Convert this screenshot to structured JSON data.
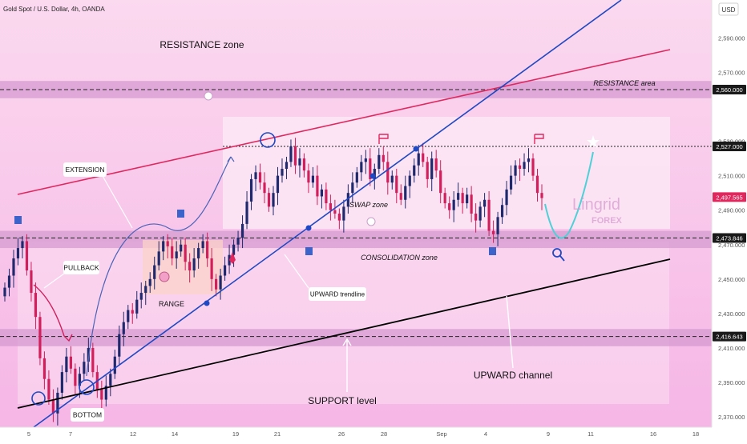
{
  "header": {
    "symbol": "Gold Spot / U.S. Dollar, 4h, OANDA"
  },
  "currency": "USD",
  "colors": {
    "background": "#fde4f4",
    "zone_fill": "#d59ad0",
    "zone_strong": "#c98ac6",
    "up_candle": "#1f2a6e",
    "down_candle": "#d21f5c",
    "resistance_line": "#e0275e",
    "trendline": "#1f48c4",
    "channel_line": "#000000",
    "price_tag_dark": "#1a1a1a",
    "price_tag_current": "#e0275e",
    "watermark": "#d79bd1"
  },
  "chart_data": {
    "type": "candlestick",
    "timeframe": "4h",
    "ylim": [
      2364,
      2612
    ],
    "x_ticks": [
      "5",
      "7",
      "12",
      "14",
      "19",
      "21",
      "26",
      "28",
      "Sep",
      "4",
      "9",
      "11",
      "16",
      "18"
    ],
    "y_ticks": [
      "2,590.000",
      "2,570.000",
      "2,530.000",
      "2,510.000",
      "2,490.000",
      "2,470.000",
      "2,450.000",
      "2,430.000",
      "2,410.000",
      "2,390.000",
      "2,370.000"
    ],
    "price_labels": [
      {
        "value": "2,560.000",
        "style": "dark"
      },
      {
        "value": "2,527.000",
        "style": "dark"
      },
      {
        "value": "2,497.565",
        "style": "current"
      },
      {
        "value": "2,473.846",
        "style": "dark"
      },
      {
        "value": "2,416.643",
        "style": "dark"
      }
    ],
    "zones": [
      {
        "name": "resistance-area",
        "from": 2555,
        "to": 2565
      },
      {
        "name": "consolidation-band",
        "from": 2468,
        "to": 2478
      },
      {
        "name": "support-band",
        "from": 2411,
        "to": 2421
      }
    ],
    "annotations": {
      "resistance_zone": "RESISTANCE zone",
      "resistance_area": "RESISTANCE area",
      "swap_zone": "SWAP zone",
      "consolidation_zone": "CONSOLIDATION zone",
      "range": "RANGE",
      "support_level": "SUPPORT level",
      "upward_channel": "UPWARD channel",
      "extension": "EXTENSION",
      "pullback": "PULLBACK",
      "upward_trendline": "UPWARD trendline",
      "bottom": "BOTTOM"
    },
    "watermark": {
      "name": "Lingrid",
      "sub": "FOREX"
    }
  }
}
